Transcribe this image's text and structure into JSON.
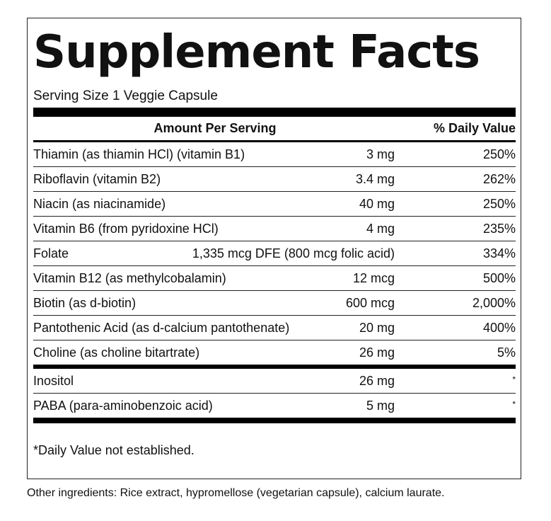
{
  "title": "Supplement Facts",
  "serving_size": "Serving Size 1 Veggie Capsule",
  "header": {
    "amount": "Amount Per Serving",
    "dv": "% Daily Value"
  },
  "rows": [
    {
      "name": "Thiamin (as thiamin HCl) (vitamin B1)",
      "amount": "3 mg",
      "dv": "250%"
    },
    {
      "name": "Riboflavin (vitamin B2)",
      "amount": "3.4 mg",
      "dv": "262%"
    },
    {
      "name": "Niacin (as niacinamide)",
      "amount": "40 mg",
      "dv": "250%"
    },
    {
      "name": "Vitamin B6 (from pyridoxine HCl)",
      "amount": "4 mg",
      "dv": "235%"
    },
    {
      "name": "Folate",
      "amount": "1,335 mcg DFE (800 mcg folic acid)",
      "dv": "334%"
    },
    {
      "name": "Vitamin B12 (as methylcobalamin)",
      "amount": "12 mcg",
      "dv": "500%"
    },
    {
      "name": "Biotin (as d-biotin)",
      "amount": "600 mcg",
      "dv": "2,000%"
    },
    {
      "name": "Pantothenic Acid (as d-calcium pantothenate)",
      "amount": "20 mg",
      "dv": "400%"
    },
    {
      "name": "Choline (as choline bitartrate)",
      "amount": "26 mg",
      "dv": "5%"
    }
  ],
  "other_rows": [
    {
      "name": "Inositol",
      "amount": "26 mg",
      "dv": "*"
    },
    {
      "name": "PABA (para-aminobenzoic acid)",
      "amount": "5 mg",
      "dv": "*"
    }
  ],
  "footnote": "*Daily Value not established.",
  "other_ingredients": "Other ingredients: Rice extract, hypromellose (vegetarian capsule), calcium laurate."
}
